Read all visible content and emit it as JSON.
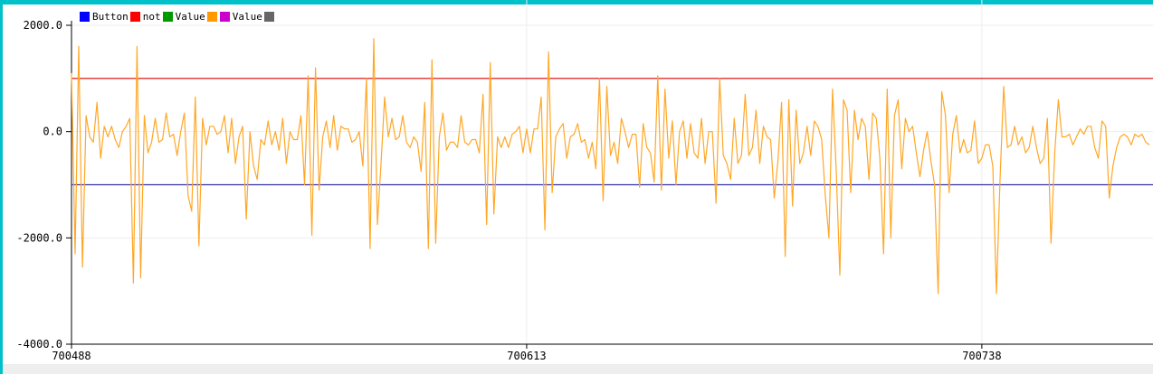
{
  "chart_data": {
    "type": "line",
    "title": "",
    "xlabel": "",
    "ylabel": "",
    "ylim": [
      -4000,
      2000
    ],
    "xlim": [
      700488,
      700785
    ],
    "y_ticks": [
      2000,
      0,
      -2000,
      -4000
    ],
    "y_tick_labels": [
      "2000.0",
      "0.0",
      "-2000.0",
      "-4000.0"
    ],
    "x_ticks": [
      700488,
      700613,
      700738
    ],
    "x_tick_labels": [
      "700488",
      "700613",
      "700738"
    ],
    "grid": true,
    "legend_position": "top-left",
    "legend": [
      {
        "label": "Button",
        "color": "#0000ff"
      },
      {
        "label": "not",
        "color": "#ff0000"
      },
      {
        "label": "Value",
        "color": "#009900"
      },
      {
        "label": "",
        "color": "#ff9900"
      },
      {
        "label": "Value",
        "color": "#cc00cc"
      },
      {
        "label": "",
        "color": "#666666"
      }
    ],
    "series": [
      {
        "color": "#dd0000",
        "values_constant": 1000
      },
      {
        "color": "#3333aa",
        "values_constant": -1000
      },
      {
        "color": "#ffa726",
        "x_start": 700488,
        "x_step": 1,
        "values": [
          1100,
          -2300,
          1600,
          -2550,
          300,
          -100,
          -200,
          550,
          -500,
          100,
          -100,
          100,
          -150,
          -300,
          0,
          100,
          250,
          -2850,
          1600,
          -2750,
          300,
          -400,
          -200,
          250,
          -200,
          -150,
          350,
          -100,
          -50,
          -450,
          0,
          350,
          -1200,
          -1500,
          650,
          -2150,
          250,
          -250,
          100,
          100,
          -50,
          0,
          300,
          -400,
          250,
          -600,
          -100,
          100,
          -1650,
          0,
          -650,
          -900,
          -150,
          -250,
          200,
          -250,
          0,
          -350,
          250,
          -600,
          0,
          -150,
          -150,
          300,
          -1000,
          1050,
          -1950,
          1200,
          -1100,
          -100,
          200,
          -300,
          300,
          -350,
          100,
          50,
          50,
          -200,
          -150,
          0,
          -650,
          1000,
          -2200,
          1750,
          -1750,
          -600,
          650,
          -100,
          250,
          -150,
          -100,
          300,
          -200,
          -300,
          -100,
          -200,
          -750,
          550,
          -2200,
          1350,
          -2100,
          -100,
          350,
          -350,
          -200,
          -200,
          -300,
          300,
          -200,
          -250,
          -150,
          -150,
          -400,
          700,
          -1750,
          1300,
          -1550,
          -100,
          -300,
          -100,
          -300,
          -50,
          0,
          100,
          -400,
          50,
          -400,
          50,
          50,
          650,
          -1850,
          1500,
          -1150,
          -100,
          50,
          150,
          -500,
          -100,
          -50,
          150,
          -200,
          -150,
          -500,
          -200,
          -700,
          1000,
          -1300,
          850,
          -450,
          -200,
          -600,
          250,
          0,
          -300,
          -50,
          -50,
          -1050,
          150,
          -300,
          -400,
          -950,
          1050,
          -1100,
          800,
          -500,
          200,
          -1000,
          0,
          200,
          -500,
          150,
          -400,
          -500,
          250,
          -600,
          0,
          0,
          -1350,
          1000,
          -450,
          -600,
          -900,
          250,
          -600,
          -450,
          700,
          -450,
          -300,
          400,
          -600,
          100,
          -100,
          -150,
          -1250,
          -550,
          550,
          -2350,
          600,
          -1400,
          400,
          -600,
          -400,
          100,
          -450,
          200,
          100,
          -150,
          -1200,
          -2000,
          800,
          -700,
          -2700,
          600,
          400,
          -1150,
          400,
          -150,
          250,
          100,
          -900,
          350,
          250,
          -500,
          -2300,
          800,
          -2000,
          300,
          600,
          -700,
          250,
          0,
          100,
          -400,
          -850,
          -350,
          0,
          -550,
          -1000,
          -3050,
          750,
          300,
          -1150,
          -50,
          300,
          -400,
          -150,
          -400,
          -350,
          200,
          -600,
          -500,
          -250,
          -250,
          -650,
          -3050,
          -900,
          850,
          -300,
          -250,
          100,
          -250,
          -100,
          -400,
          -300,
          100,
          -300,
          -600,
          -500,
          250,
          -2100,
          -400,
          600,
          -100,
          -100,
          -50,
          -250,
          -100,
          50,
          -50,
          100,
          100,
          -300,
          -500,
          200,
          100,
          -1250,
          -650,
          -300,
          -100,
          -50,
          -100,
          -250,
          -50,
          -100,
          -50,
          -200,
          -250
        ]
      }
    ]
  }
}
